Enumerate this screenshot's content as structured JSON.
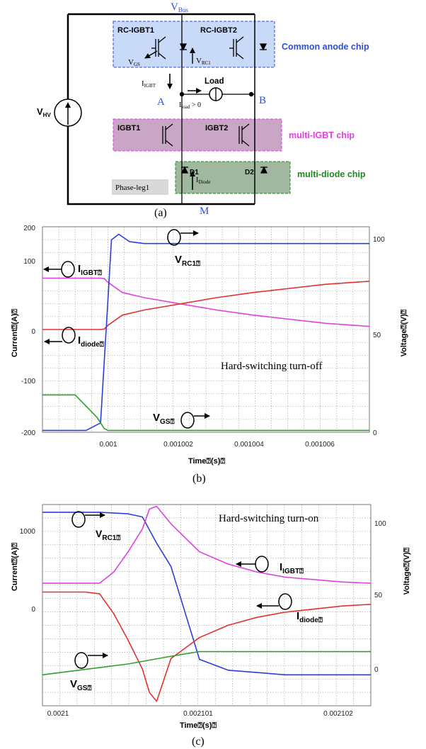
{
  "circuit": {
    "top_rail": "V",
    "top_rail_sub": "Bus",
    "source": "V",
    "source_sub": "HV",
    "rc_igbt1": "RC-IGBT1",
    "rc_igbt2": "RC-IGBT2",
    "common_anode_chip": "Common anode chip",
    "vgs": "V",
    "vgs_sub": "GS",
    "vrc1": "V",
    "vrc1_sub": "RC1",
    "iigbt": "I",
    "iigbt_sub": "IGBT",
    "load": "Load",
    "node_a": "A",
    "node_b": "B",
    "iload": "I",
    "iload_sub": "load",
    "iload_cond": " > 0",
    "igbt1": "IGBT1",
    "igbt2": "IGBT2",
    "multi_igbt_chip": "multi-IGBT chip",
    "d1": "D1",
    "d2": "D2",
    "idiode": "I",
    "idiode_sub": "Diode",
    "multi_diode_chip": "multi-diode chip",
    "phase_leg": "Phase-leg1",
    "node_m": "M",
    "caption": "(a)",
    "colors": {
      "blue_box": "#c9daf8",
      "pink_box": "#c9a6c6",
      "green_box": "#9fb89f",
      "blue_text": "#2d4fd8",
      "pink_text": "#e040e0",
      "green_text": "#1d8a1d"
    }
  },
  "plot_b": {
    "caption": "(b)",
    "annotation": "Hard-switching turn-off",
    "ylabel_left": "Current⍰(A)⍰",
    "ylabel_right": "Voltage⍰(V)⍰",
    "xlabel": "Time⍰(s)⍰",
    "left_ticks": [
      "200",
      "100",
      "0",
      "-100",
      "-200"
    ],
    "right_ticks": [
      "100",
      "50",
      "0"
    ],
    "x_ticks": [
      "0.001",
      "0.001002",
      "0.001004",
      "0.001006"
    ],
    "labels": {
      "iigbt": "I",
      "iigbt_sub": "IGBT⍰",
      "idiode": "I",
      "idiode_sub": "diode⍰",
      "vrc1": "V",
      "vrc1_sub": "RC1⍰",
      "vgs": "V",
      "vgs_sub": "GS⍰"
    }
  },
  "plot_c": {
    "caption": "(c)",
    "annotation": "Hard-switching turn-on",
    "ylabel_left": "Current⍰(A)⍰",
    "ylabel_right": "Voltage⍰(V)⍰",
    "xlabel": "Time⍰(s)⍰",
    "left_ticks": [
      "1000",
      "0"
    ],
    "right_ticks": [
      "100",
      "50",
      "0"
    ],
    "x_ticks": [
      "0.0021",
      "0.002101",
      "0.002102"
    ],
    "labels": {
      "vrc1": "V",
      "vrc1_sub": "RC1⍰",
      "iigbt": "I",
      "iigbt_sub": "IGBT⍰",
      "idiode": "I",
      "idiode_sub": "diode⍰",
      "vgs": "V",
      "vgs_sub": "GS⍰"
    }
  },
  "chart_data": [
    {
      "type": "line",
      "title": "Hard-switching turn-off",
      "xlabel": "Time⍰(s)⍰",
      "ylabel": "Current⍰(A)⍰",
      "y2label": "Voltage⍰(V)⍰",
      "xlim": [
        0.0009982,
        0.0010072
      ],
      "ylim": [
        -200,
        200
      ],
      "y2lim": [
        0,
        110
      ],
      "grid": true,
      "series": [
        {
          "name": "I",
          "axis": "left",
          "color": "#e040e0",
          "x": [
            0.0009982,
            0.0009998,
            0.0009999,
            0.001,
            0.0010004,
            0.001001,
            0.001002,
            0.001003,
            0.001004,
            0.001005,
            0.001006,
            0.0010072
          ],
          "y": [
            100,
            100,
            99,
            92,
            72,
            62,
            50,
            38,
            28,
            20,
            12,
            6
          ]
        },
        {
          "name": "I",
          "axis": "left",
          "color": "#e53030",
          "x": [
            0.0009982,
            0.0009998,
            0.0009999,
            0.001,
            0.0010004,
            0.001001,
            0.001002,
            0.001003,
            0.001004,
            0.001005,
            0.001006,
            0.0010072
          ],
          "y": [
            0,
            0,
            1,
            8,
            28,
            38,
            50,
            62,
            72,
            80,
            88,
            94
          ]
        },
        {
          "name": "V",
          "axis": "right",
          "color": "#2a3fd8",
          "x": [
            0.0009982,
            0.0009994,
            0.0009998,
            0.001,
            0.0010001,
            0.0010003,
            0.0010006,
            0.001001,
            0.001002,
            0.001004,
            0.001006,
            0.0010072
          ],
          "y": [
            1,
            1,
            5,
            70,
            103,
            106,
            102,
            101,
            101,
            101,
            101,
            101
          ]
        },
        {
          "name": "V",
          "axis": "right",
          "color": "#2ca02c",
          "x": [
            0.0009982,
            0.0009991,
            0.0009997,
            0.0009999,
            0.001,
            0.001002,
            0.001004,
            0.001006,
            0.0010072
          ],
          "y": [
            20,
            20,
            8,
            2,
            1,
            1,
            1,
            1,
            1
          ]
        }
      ]
    },
    {
      "type": "line",
      "title": "Hard-switching turn-on",
      "xlabel": "Time⍰(s)⍰",
      "ylabel": "Current⍰(A)⍰",
      "y2label": "Voltage⍰(V)⍰",
      "xlim": [
        0.0020999,
        0.0021022
      ],
      "ylim": [
        -1200,
        1100
      ],
      "y2lim": [
        -20,
        110
      ],
      "grid": true,
      "series": [
        {
          "name": "V",
          "axis": "right",
          "color": "#2a3fd8",
          "x": [
            0.0020999,
            0.0021003,
            0.0021005,
            0.0021006,
            0.0021007,
            0.0021008,
            0.0021009,
            0.002101,
            0.0021012,
            0.0021016,
            0.0021022
          ],
          "y": [
            105,
            105,
            104,
            102,
            85,
            70,
            40,
            10,
            3,
            0,
            0
          ]
        },
        {
          "name": "I",
          "axis": "left",
          "color": "#e040e0",
          "x": [
            0.0020999,
            0.0021002,
            0.0021003,
            0.0021004,
            0.0021005,
            0.0021006,
            0.00210065,
            0.0021007,
            0.0021008,
            0.002101,
            0.0021012,
            0.0021014,
            0.0021016,
            0.002102,
            0.0021022
          ],
          "y": [
            200,
            200,
            200,
            330,
            560,
            820,
            1050,
            1080,
            880,
            560,
            420,
            330,
            270,
            215,
            200
          ]
        },
        {
          "name": "I",
          "axis": "left",
          "color": "#e53030",
          "x": [
            0.0020999,
            0.0021002,
            0.0021003,
            0.0021004,
            0.0021005,
            0.0021006,
            0.00210065,
            0.0021007,
            0.0021008,
            0.002101,
            0.0021012,
            0.0021014,
            0.0021016,
            0.002102,
            0.0021022
          ],
          "y": [
            100,
            100,
            80,
            -150,
            -450,
            -780,
            -1050,
            -1150,
            -660,
            -420,
            -280,
            -190,
            -130,
            -60,
            -40
          ]
        },
        {
          "name": "V",
          "axis": "right",
          "color": "#2ca02c",
          "x": [
            0.0020999,
            0.0021005,
            0.0021008,
            0.002101,
            0.0021022
          ],
          "y": [
            0,
            7,
            12,
            15,
            15
          ]
        }
      ]
    }
  ]
}
